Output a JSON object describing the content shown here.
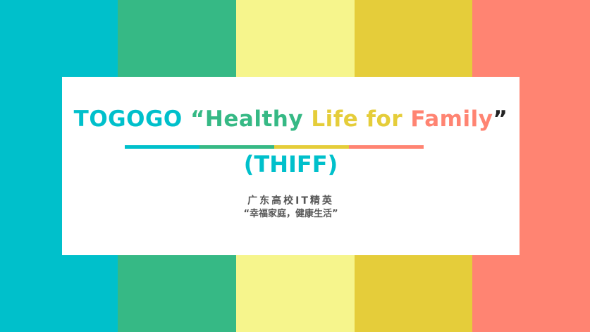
{
  "colors": {
    "teal": "#00c0cb",
    "green": "#36b985",
    "light_yellow": "#f6f58c",
    "mustard": "#e5cd3a",
    "salmon": "#ff8472",
    "gray_text": "#555555",
    "card_bg": "#ffffff"
  },
  "title": {
    "part1": "TOGOGO ",
    "part2": "“Healthy ",
    "part3": "Life ",
    "part4": "for ",
    "part5": "Family",
    "part6": "”"
  },
  "abbreviation": "(THIFF)",
  "subtitle": {
    "line1": "广东高校IT精英",
    "line2": "“幸福家庭，健康生活”"
  }
}
